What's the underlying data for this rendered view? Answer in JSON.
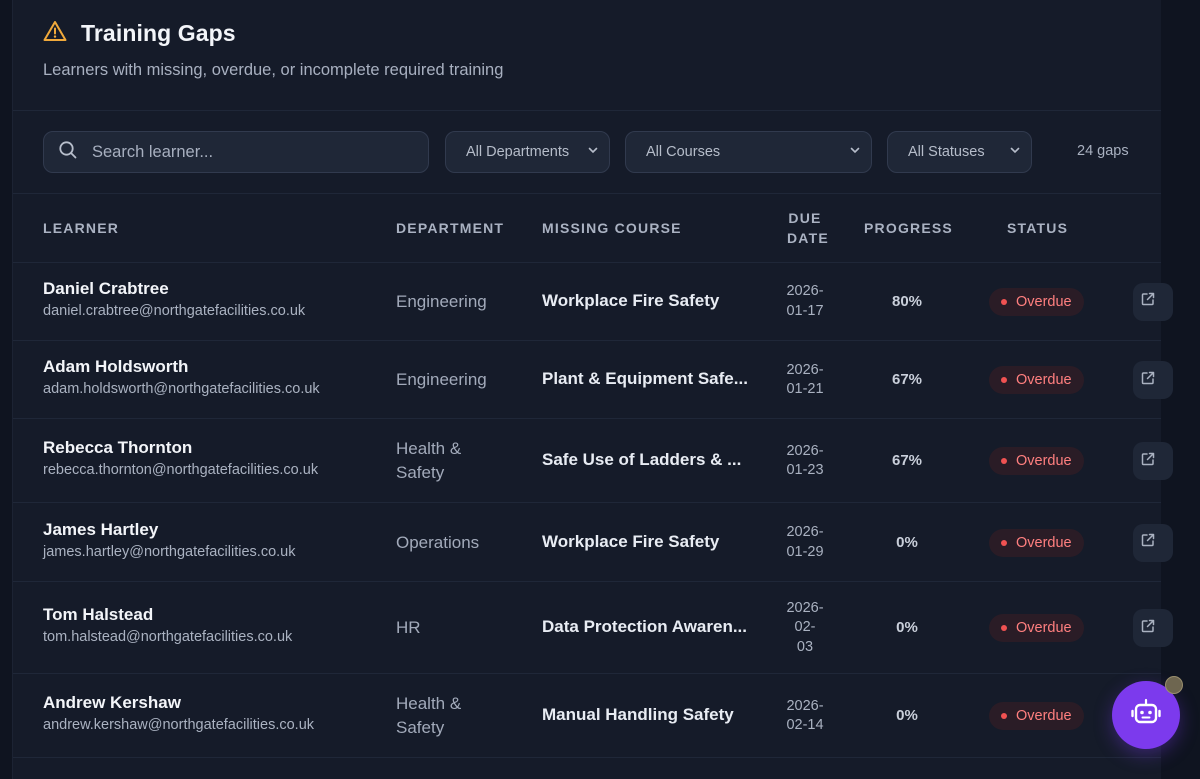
{
  "header": {
    "title": "Training Gaps",
    "subtitle": "Learners with missing, overdue, or incomplete required training",
    "icon": "warning-triangle-icon",
    "icon_color": "#f0a93b"
  },
  "filters": {
    "search_placeholder": "Search learner...",
    "department": "All Departments",
    "course": "All Courses",
    "status": "All Statuses",
    "count": "24 gaps"
  },
  "columns": {
    "learner": "LEARNER",
    "department": "DEPARTMENT",
    "course": "MISSING COURSE",
    "due_line1": "DUE",
    "due_line2": "DATE",
    "progress": "PROGRESS",
    "status": "STATUS"
  },
  "rows": [
    {
      "name": "Daniel Crabtree",
      "email": "daniel.crabtree@northgatefacilities.co.uk",
      "dept": [
        "Engineering"
      ],
      "course": "Workplace Fire Safety",
      "due": [
        "2026-",
        "01-17"
      ],
      "progress": "80%",
      "status": "Overdue"
    },
    {
      "name": "Adam Holdsworth",
      "email": "adam.holdsworth@northgatefacilities.co.uk",
      "dept": [
        "Engineering"
      ],
      "course": "Plant & Equipment Safe...",
      "due": [
        "2026-",
        "01-21"
      ],
      "progress": "67%",
      "status": "Overdue"
    },
    {
      "name": "Rebecca Thornton",
      "email": "rebecca.thornton@northgatefacilities.co.uk",
      "dept": [
        "Health &",
        "Safety"
      ],
      "course": "Safe Use of Ladders & ...",
      "due": [
        "2026-",
        "01-23"
      ],
      "progress": "67%",
      "status": "Overdue"
    },
    {
      "name": "James Hartley",
      "email": "james.hartley@northgatefacilities.co.uk",
      "dept": [
        "Operations"
      ],
      "course": "Workplace Fire Safety",
      "due": [
        "2026-",
        "01-29"
      ],
      "progress": "0%",
      "status": "Overdue"
    },
    {
      "name": "Tom Halstead",
      "email": "tom.halstead@northgatefacilities.co.uk",
      "dept": [
        "HR"
      ],
      "course": "Data Protection Awaren...",
      "due": [
        "2026-",
        "02-",
        "03"
      ],
      "progress": "0%",
      "status": "Overdue"
    },
    {
      "name": "Andrew Kershaw",
      "email": "andrew.kershaw@northgatefacilities.co.uk",
      "dept": [
        "Health &",
        "Safety"
      ],
      "course": "Manual Handling Safety",
      "due": [
        "2026-",
        "02-14"
      ],
      "progress": "0%",
      "status": "Overdue"
    }
  ],
  "colors": {
    "accent": "#7c3aed",
    "overdue": "#ff7f7f",
    "background": "#151b29"
  },
  "assistant_icon": "robot-icon"
}
